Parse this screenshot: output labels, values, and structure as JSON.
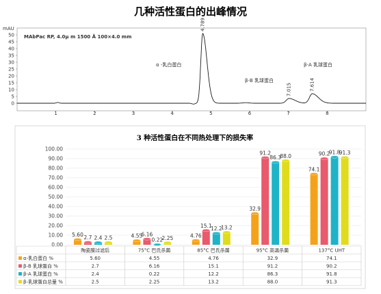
{
  "page_title": "几种活性蛋白的出峰情况",
  "chart_data": [
    {
      "type": "line",
      "ylabel": "mAU",
      "method_label": "MAbPac RP, 4.0μ m 1500 Å 100×4.0 mm",
      "ylim": [
        0,
        55
      ],
      "xlim": [
        0,
        9
      ],
      "y_ticks": [
        "50",
        "45",
        "40",
        "35",
        "30",
        "25",
        "20",
        "15",
        "10",
        "5",
        "0"
      ],
      "x_ticks": [
        "1",
        "2",
        "3",
        "4",
        "5",
        "6",
        "7",
        "8"
      ],
      "peaks": [
        {
          "rt": 4.789,
          "label": "4.789",
          "height": 51,
          "width": 0.07
        },
        {
          "rt": 7.015,
          "label": "7.015",
          "height": 3.5,
          "width": 0.1
        },
        {
          "rt": 7.614,
          "label": "7.614",
          "height": 7,
          "width": 0.1
        }
      ],
      "annotations": [
        "α -乳白蛋白",
        "β-B 乳球蛋白",
        "β-A 乳球蛋白"
      ]
    },
    {
      "type": "bar",
      "title": "3 种活性蛋白在不同热处理下的损失率",
      "ylim": [
        0,
        100
      ],
      "y_ticks": [
        "100.00",
        "90.00",
        "80.00",
        "70.00",
        "60.00",
        "50.00",
        "40.00",
        "30.00",
        "20.00",
        "10.00",
        "0.00"
      ],
      "categories": [
        "陶瓷膜过滤后",
        "75°C 巴氏杀菌",
        "85°C 巴氏杀菌",
        "95°C 高温杀菌",
        "137°C UHT"
      ],
      "series": [
        {
          "name": "α-乳白蛋白 %",
          "color": "#f5a21b",
          "values": [
            5.6,
            4.55,
            4.76,
            32.9,
            74.1
          ],
          "labels": [
            "5.60",
            "4.55",
            "4.76",
            "32.9",
            "74.1"
          ],
          "table": [
            "5.60",
            "4.55",
            "4.76",
            "32.9",
            "74.1"
          ]
        },
        {
          "name": "β-B 乳球蛋白 %",
          "color": "#e85a6c",
          "values": [
            2.7,
            6.16,
            15.1,
            91.2,
            90.2
          ],
          "labels": [
            "2.7",
            "6.16",
            "15.1",
            "91.2",
            "90.2"
          ],
          "table": [
            "2.7",
            "6.16",
            "15.1",
            "91.2",
            "90.2"
          ]
        },
        {
          "name": "β-A 乳球蛋白 %",
          "color": "#1fb3c8",
          "values": [
            2.4,
            0.22,
            12.2,
            86.3,
            91.8
          ],
          "labels": [
            "2.4",
            "0.22",
            "12.2",
            "86.3",
            "91.8"
          ],
          "table": [
            "2.4",
            "0.22",
            "12.2",
            "86.3",
            "91.8"
          ]
        },
        {
          "name": "β-乳球蛋白总量 %",
          "color": "#e0dc1c",
          "values": [
            2.5,
            2.25,
            13.2,
            88.0,
            91.3
          ],
          "labels": [
            "2.5",
            "2.25",
            "13.2",
            "88.0",
            "91.3"
          ],
          "table": [
            "2.5",
            "2.25",
            "13.2",
            "88.0",
            "91.3"
          ]
        }
      ]
    }
  ]
}
